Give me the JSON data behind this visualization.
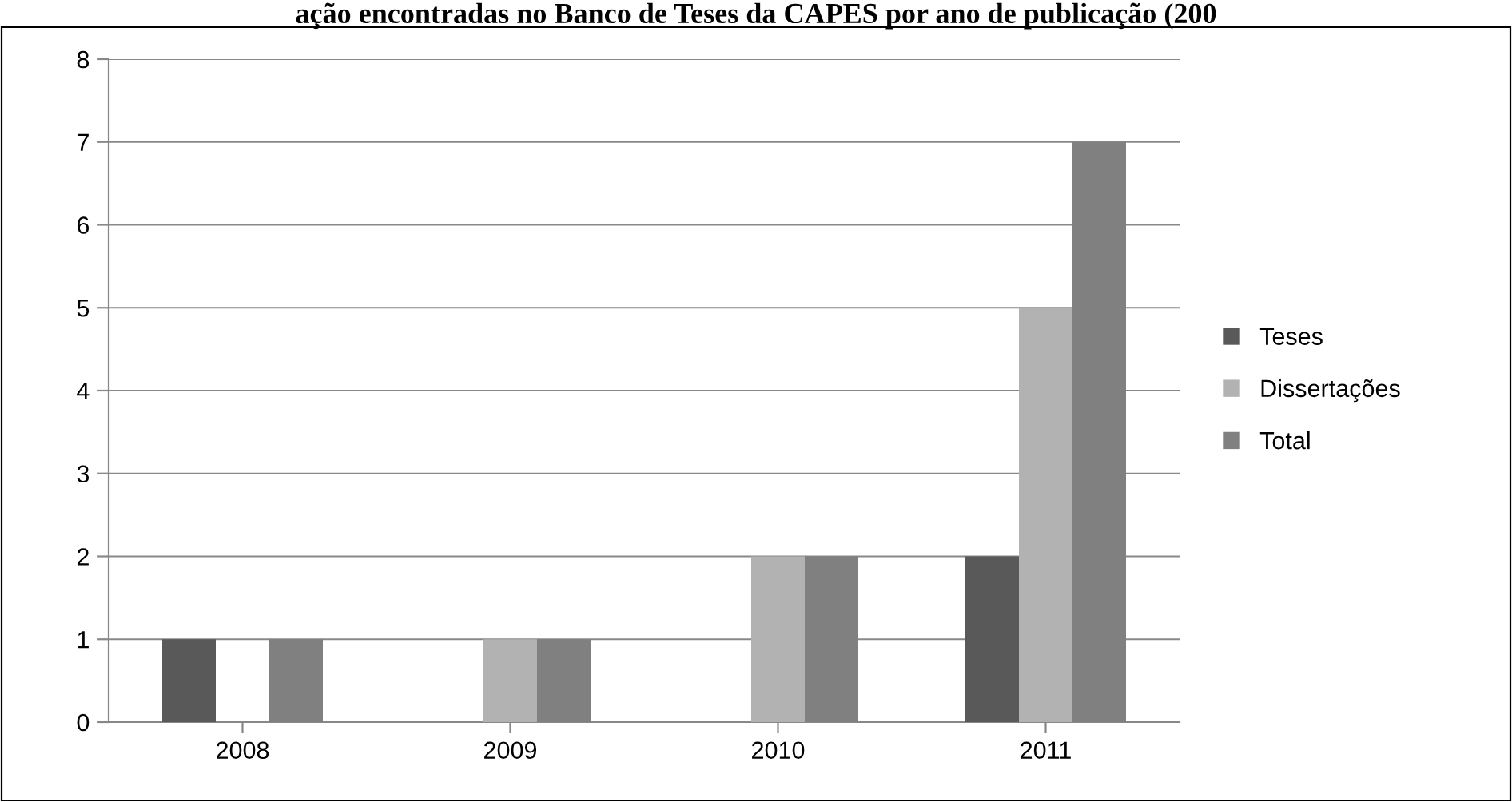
{
  "chart_data": {
    "type": "bar",
    "title": "ação encontradas no Banco de Teses da CAPES por ano de publicação (200",
    "categories": [
      "2008",
      "2009",
      "2010",
      "2011"
    ],
    "series": [
      {
        "name": "Teses",
        "color": "#595959",
        "values": [
          1,
          0,
          0,
          2
        ]
      },
      {
        "name": "Dissertações",
        "color": "#b2b2b2",
        "values": [
          0,
          1,
          2,
          5
        ]
      },
      {
        "name": "Total",
        "color": "#808080",
        "values": [
          1,
          1,
          2,
          7
        ]
      }
    ],
    "ylim": [
      0,
      8
    ],
    "yticks": [
      0,
      1,
      2,
      3,
      4,
      5,
      6,
      7,
      8
    ],
    "grid": "y",
    "legend": "right"
  }
}
